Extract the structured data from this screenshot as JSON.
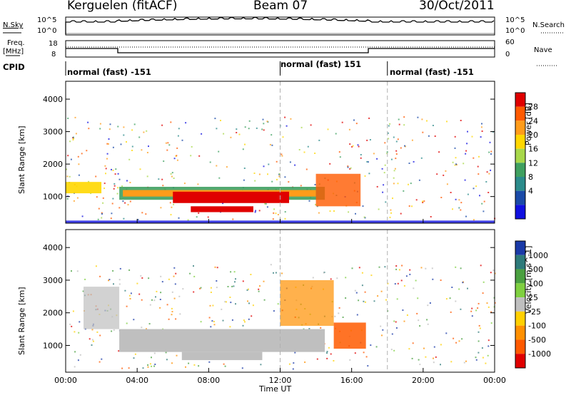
{
  "header": {
    "station": "Kerguelen (fitACF)",
    "beam": "Beam 07",
    "date": "30/Oct/2011"
  },
  "panels": {
    "nsky_label": "N.Sky",
    "nsky_ticks": [
      "10^5",
      "10^0"
    ],
    "nsearch_label": "N.Search",
    "freq_label_1": "Freq.",
    "freq_label_2": "[MHz]",
    "freq_ticks": [
      "18",
      "8"
    ],
    "nave_label": "Nave",
    "nave_ticks": [
      "60",
      "0"
    ],
    "cpid_label": "CPID",
    "cpid_segments": [
      {
        "text": "normal (fast) -151"
      },
      {
        "text": "normal (fast) 151"
      },
      {
        "text": "normal (fast) -151"
      }
    ]
  },
  "chart_data": [
    {
      "type": "heatmap",
      "title": "",
      "ylabel": "Slant Range [km]",
      "xlabel": "Time UT",
      "colorbar_label": "Power [dB]",
      "colorbar_ticks": [
        "28",
        "24",
        "20",
        "16",
        "12",
        "8",
        "4"
      ],
      "colorbar_colors": [
        "#e00000",
        "#ff5a00",
        "#ff9c1a",
        "#ffd700",
        "#a8d84a",
        "#3fa060",
        "#2b8b8b",
        "#1a4aa8",
        "#1010e0"
      ],
      "y_ticks": [
        "4000",
        "3000",
        "2000",
        "1000"
      ],
      "ylim": [
        180,
        4550
      ],
      "x_range_hours": [
        0,
        24
      ],
      "dashed_lines_hours": [
        12,
        18
      ]
    },
    {
      "type": "heatmap",
      "title": "",
      "ylabel": "Slant Range [km]",
      "xlabel": "Time UT",
      "colorbar_label": "Velocity [m s^-1]",
      "colorbar_ticks": [
        "1000",
        "500",
        "100",
        "25",
        "-25",
        "-100",
        "-500",
        "-1000"
      ],
      "colorbar_colors": [
        "#1a3aa8",
        "#2d7a7a",
        "#4aa040",
        "#7fd040",
        "#bfbfbf",
        "#ffd000",
        "#ff9000",
        "#ff5a00",
        "#e00000"
      ],
      "y_ticks": [
        "4000",
        "3000",
        "2000",
        "1000"
      ],
      "ylim": [
        180,
        4550
      ],
      "x_range_hours": [
        0,
        24
      ],
      "dashed_lines_hours": [
        12,
        18
      ]
    }
  ],
  "x_axis": {
    "ticks": [
      "00:00",
      "04:00",
      "08:00",
      "12:00",
      "16:00",
      "20:00",
      "00:00"
    ],
    "label": "Time UT"
  }
}
